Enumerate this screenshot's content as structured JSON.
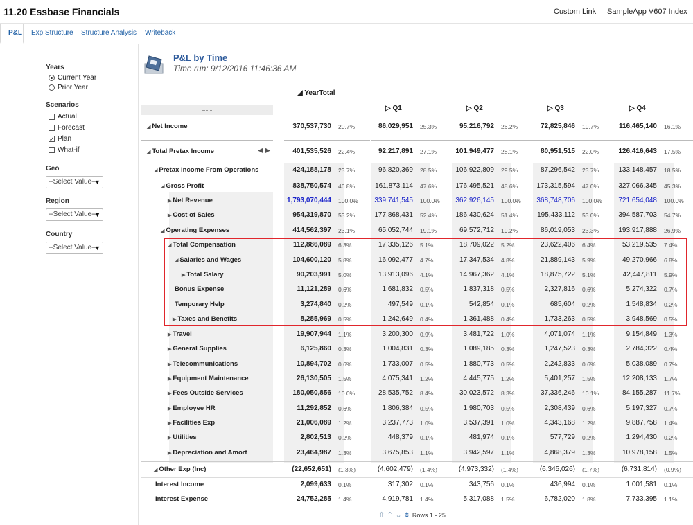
{
  "app": {
    "title": "11.20 Essbase Financials",
    "custom_link": "Custom Link",
    "index_link": "SampleApp V607 Index"
  },
  "tabs": [
    "P&L",
    "Exp Structure",
    "Structure Analysis",
    "Writeback"
  ],
  "prompts": {
    "years_label": "Years",
    "years_options": [
      "Current Year",
      "Prior Year"
    ],
    "years_selected": "Current Year",
    "scenarios_label": "Scenarios",
    "scenario_options": [
      "Actual",
      "Forecast",
      "Plan",
      "What-if"
    ],
    "scenario_checked": "Plan",
    "geo_label": "Geo",
    "geo_value": "--Select Value--",
    "region_label": "Region",
    "region_value": "--Select Value--",
    "country_label": "Country",
    "country_value": "--Select Value--"
  },
  "report": {
    "title": "P&L by Time",
    "time_run": "Time run: 9/12/2016 11:46:36 AM",
    "year_total_label": "YearTotal",
    "quarters": [
      "Q1",
      "Q2",
      "Q3",
      "Q4"
    ],
    "rows": [
      {
        "label": "Net Income",
        "indent": 0,
        "arrow": "down",
        "bold": true,
        "values": [
          "370,537,730",
          "20.7%",
          "86,029,951",
          "25.3%",
          "95,216,792",
          "26.2%",
          "72,825,846",
          "19.7%",
          "116,465,140",
          "16.1%"
        ],
        "bold_values": true
      },
      {
        "label": "Total Pretax Income",
        "indent": 0,
        "arrow": "down",
        "bold": true,
        "values": [
          "401,535,526",
          "22.4%",
          "92,217,891",
          "27.1%",
          "101,949,477",
          "28.1%",
          "80,951,515",
          "22.0%",
          "126,416,643",
          "17.5%"
        ],
        "bold_values": true
      },
      {
        "label": "Pretax Income From Operations",
        "indent": 1,
        "arrow": "down",
        "bold": true,
        "values": [
          "424,188,178",
          "23.7%",
          "96,820,369",
          "28.5%",
          "106,922,809",
          "29.5%",
          "87,296,542",
          "23.7%",
          "133,148,457",
          "18.5%"
        ]
      },
      {
        "label": "Gross Profit",
        "indent": 2,
        "arrow": "down",
        "bold": true,
        "values": [
          "838,750,574",
          "46.8%",
          "161,873,114",
          "47.6%",
          "176,495,521",
          "48.6%",
          "173,315,594",
          "47.0%",
          "327,066,345",
          "45.3%"
        ]
      },
      {
        "label": "Net Revenue",
        "indent": 3,
        "arrow": "right",
        "bold": true,
        "values": [
          "1,793,070,444",
          "100.0%",
          "339,741,545",
          "100.0%",
          "362,926,145",
          "100.0%",
          "368,748,706",
          "100.0%",
          "721,654,048",
          "100.0%"
        ],
        "blue": true
      },
      {
        "label": "Cost of Sales",
        "indent": 3,
        "arrow": "right",
        "bold": true,
        "values": [
          "954,319,870",
          "53.2%",
          "177,868,431",
          "52.4%",
          "186,430,624",
          "51.4%",
          "195,433,112",
          "53.0%",
          "394,587,703",
          "54.7%"
        ]
      },
      {
        "label": "Operating Expenses",
        "indent": 2,
        "arrow": "down",
        "bold": true,
        "values": [
          "414,562,397",
          "23.1%",
          "65,052,744",
          "19.1%",
          "69,572,712",
          "19.2%",
          "86,019,053",
          "23.3%",
          "193,917,888",
          "26.9%"
        ]
      },
      {
        "label": "Total Compensation",
        "indent": 3,
        "arrow": "down",
        "bold": true,
        "values": [
          "112,886,089",
          "6.3%",
          "17,335,126",
          "5.1%",
          "18,709,022",
          "5.2%",
          "23,622,406",
          "6.4%",
          "53,219,535",
          "7.4%"
        ]
      },
      {
        "label": "Salaries and Wages",
        "indent": 4,
        "arrow": "down",
        "bold": true,
        "values": [
          "104,600,120",
          "5.8%",
          "16,092,477",
          "4.7%",
          "17,347,534",
          "4.8%",
          "21,889,143",
          "5.9%",
          "49,270,966",
          "6.8%"
        ]
      },
      {
        "label": "Total Salary",
        "indent": 5,
        "arrow": "right",
        "bold": true,
        "values": [
          "90,203,991",
          "5.0%",
          "13,913,096",
          "4.1%",
          "14,967,362",
          "4.1%",
          "18,875,722",
          "5.1%",
          "42,447,811",
          "5.9%"
        ]
      },
      {
        "label": "Bonus Expense",
        "indent": 4,
        "arrow": "",
        "bold": true,
        "values": [
          "11,121,289",
          "0.6%",
          "1,681,832",
          "0.5%",
          "1,837,318",
          "0.5%",
          "2,327,816",
          "0.6%",
          "5,274,322",
          "0.7%"
        ]
      },
      {
        "label": "Temporary Help",
        "indent": 4,
        "arrow": "",
        "bold": true,
        "values": [
          "3,274,840",
          "0.2%",
          "497,549",
          "0.1%",
          "542,854",
          "0.1%",
          "685,604",
          "0.2%",
          "1,548,834",
          "0.2%"
        ]
      },
      {
        "label": "Taxes and Benefits",
        "indent": 3.7,
        "arrow": "right",
        "bold": true,
        "values": [
          "8,285,969",
          "0.5%",
          "1,242,649",
          "0.4%",
          "1,361,488",
          "0.4%",
          "1,733,263",
          "0.5%",
          "3,948,569",
          "0.5%"
        ]
      },
      {
        "label": "Travel",
        "indent": 3,
        "arrow": "right",
        "bold": true,
        "values": [
          "19,907,944",
          "1.1%",
          "3,200,300",
          "0.9%",
          "3,481,722",
          "1.0%",
          "4,071,074",
          "1.1%",
          "9,154,849",
          "1.3%"
        ]
      },
      {
        "label": "General Supplies",
        "indent": 3,
        "arrow": "right",
        "bold": true,
        "values": [
          "6,125,860",
          "0.3%",
          "1,004,831",
          "0.3%",
          "1,089,185",
          "0.3%",
          "1,247,523",
          "0.3%",
          "2,784,322",
          "0.4%"
        ]
      },
      {
        "label": "Telecommunications",
        "indent": 3,
        "arrow": "right",
        "bold": true,
        "values": [
          "10,894,702",
          "0.6%",
          "1,733,007",
          "0.5%",
          "1,880,773",
          "0.5%",
          "2,242,833",
          "0.6%",
          "5,038,089",
          "0.7%"
        ]
      },
      {
        "label": "Equipment Maintenance",
        "indent": 3,
        "arrow": "right",
        "bold": true,
        "values": [
          "26,130,505",
          "1.5%",
          "4,075,341",
          "1.2%",
          "4,445,775",
          "1.2%",
          "5,401,257",
          "1.5%",
          "12,208,133",
          "1.7%"
        ]
      },
      {
        "label": "Fees Outside Services",
        "indent": 3,
        "arrow": "right",
        "bold": true,
        "values": [
          "180,050,856",
          "10.0%",
          "28,535,752",
          "8.4%",
          "30,023,572",
          "8.3%",
          "37,336,246",
          "10.1%",
          "84,155,287",
          "11.7%"
        ]
      },
      {
        "label": "Employee HR",
        "indent": 3,
        "arrow": "right",
        "bold": true,
        "values": [
          "11,292,852",
          "0.6%",
          "1,806,384",
          "0.5%",
          "1,980,703",
          "0.5%",
          "2,308,439",
          "0.6%",
          "5,197,327",
          "0.7%"
        ]
      },
      {
        "label": "Facilities Exp",
        "indent": 3,
        "arrow": "right",
        "bold": true,
        "values": [
          "21,006,089",
          "1.2%",
          "3,237,773",
          "1.0%",
          "3,537,391",
          "1.0%",
          "4,343,168",
          "1.2%",
          "9,887,758",
          "1.4%"
        ]
      },
      {
        "label": "Utilities",
        "indent": 3,
        "arrow": "right",
        "bold": true,
        "values": [
          "2,802,513",
          "0.2%",
          "448,379",
          "0.1%",
          "481,974",
          "0.1%",
          "577,729",
          "0.2%",
          "1,294,430",
          "0.2%"
        ]
      },
      {
        "label": "Depreciation and Amort",
        "indent": 3,
        "arrow": "right",
        "bold": true,
        "values": [
          "23,464,987",
          "1.3%",
          "3,675,853",
          "1.1%",
          "3,942,597",
          "1.1%",
          "4,868,379",
          "1.3%",
          "10,978,158",
          "1.5%"
        ]
      },
      {
        "label": "Other Exp (Inc)",
        "indent": 1,
        "arrow": "down",
        "bold": true,
        "values": [
          "(22,652,651)",
          "(1.3%)",
          "(4,602,479)",
          "(1.4%)",
          "(4,973,332)",
          "(1.4%)",
          "(6,345,026)",
          "(1.7%)",
          "(6,731,814)",
          "(0.9%)"
        ],
        "red_pct": true
      },
      {
        "label": "Interest Income",
        "indent": 1.2,
        "arrow": "",
        "bold": true,
        "values": [
          "2,099,633",
          "0.1%",
          "317,302",
          "0.1%",
          "343,756",
          "0.1%",
          "436,994",
          "0.1%",
          "1,001,581",
          "0.1%"
        ]
      },
      {
        "label": "Interest Expense",
        "indent": 1.2,
        "arrow": "",
        "bold": true,
        "values": [
          "24,752,285",
          "1.4%",
          "4,919,781",
          "1.4%",
          "5,317,088",
          "1.5%",
          "6,782,020",
          "1.8%",
          "7,733,395",
          "1.1%"
        ]
      }
    ]
  },
  "pager": {
    "rows_text": "Rows 1 - 25"
  }
}
